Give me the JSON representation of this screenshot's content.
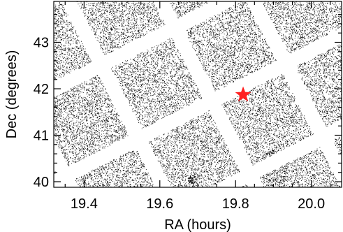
{
  "chart_data": {
    "type": "scatter",
    "title": "",
    "xlabel": "RA (hours)",
    "ylabel": "Dec (degrees)",
    "xlim": [
      19.32,
      20.08
    ],
    "ylim": [
      39.88,
      43.88
    ],
    "xticks": {
      "values": [
        19.4,
        19.6,
        19.8,
        20.0
      ],
      "labels": [
        "19.4",
        "19.6",
        "19.8",
        "20.0"
      ]
    },
    "yticks": {
      "values": [
        40,
        41,
        42,
        43
      ],
      "labels": [
        "40",
        "41",
        "42",
        "43"
      ]
    },
    "grid": false,
    "legend": "none",
    "point_color": "#000000",
    "series": [
      {
        "description_only": false,
        "marker": "dot",
        "color": "#000000",
        "density": "uniform",
        "note": ""
      }
    ],
    "highlight": {
      "ra": 19.82,
      "dec": 41.87,
      "marker": "star",
      "color": "#ff2020"
    }
  }
}
